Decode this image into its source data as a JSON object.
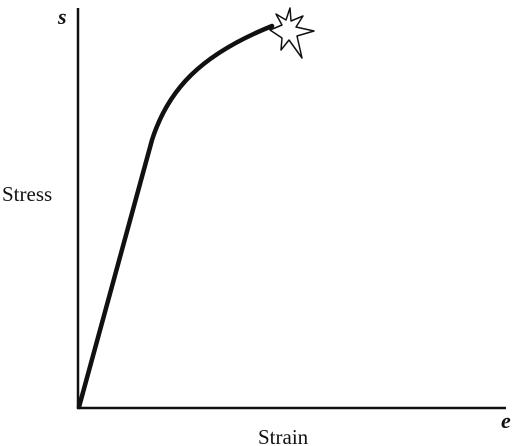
{
  "axes": {
    "y": {
      "symbol": "s",
      "label": "Stress"
    },
    "x": {
      "symbol": "e",
      "label": "Strain"
    }
  }
}
